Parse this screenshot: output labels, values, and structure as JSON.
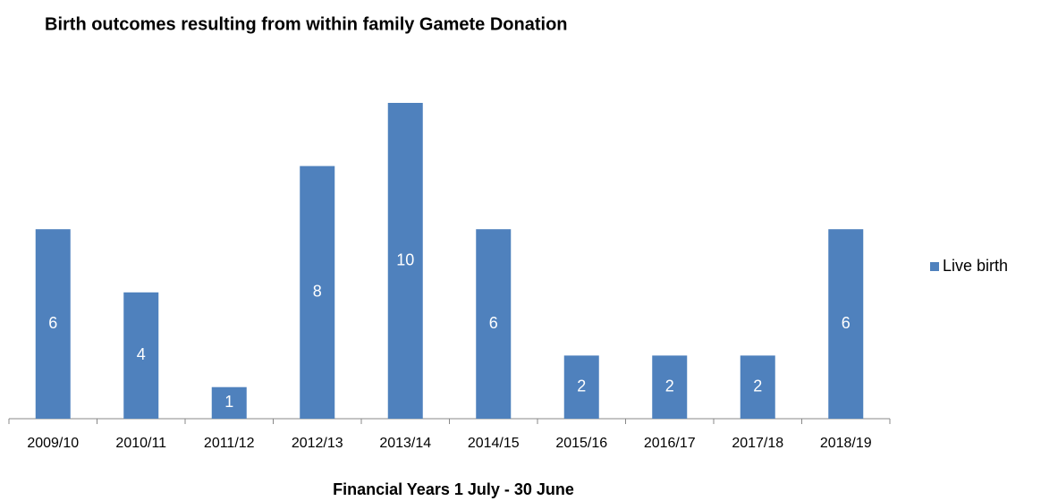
{
  "chart_data": {
    "type": "bar",
    "title": "Birth outcomes resulting from within family Gamete Donation",
    "x_label": "Financial Years 1 July - 30 June",
    "categories": [
      "2009/10",
      "2010/11",
      "2011/12",
      "2012/13",
      "2013/14",
      "2014/15",
      "2015/16",
      "2016/17",
      "2017/18",
      "2018/19"
    ],
    "series": [
      {
        "name": "Live birth",
        "color": "#4f81bd",
        "values": [
          6,
          4,
          1,
          8,
          10,
          6,
          2,
          2,
          2,
          6
        ]
      }
    ],
    "legend": "right",
    "grid": false
  }
}
